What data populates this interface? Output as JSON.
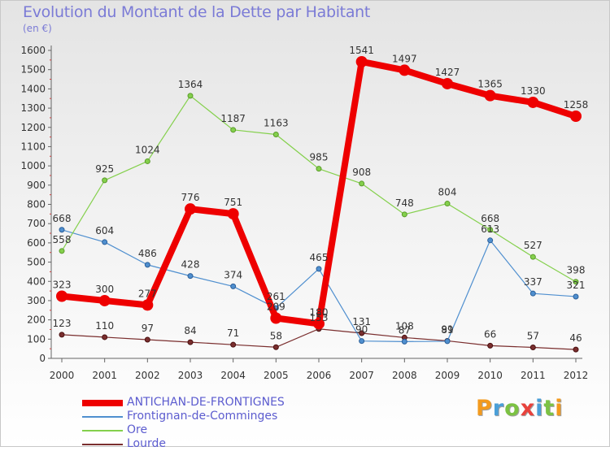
{
  "title": "Evolution du Montant de la Dette par Habitant",
  "subtitle": "(en €)",
  "brand": {
    "logo": "Proxiti",
    "colors": [
      "#f39a1e",
      "#4a9fd8",
      "#7cc243",
      "#e8423c",
      "#4a9fd8",
      "#7cc243",
      "#f39a1e"
    ]
  },
  "chart_data": {
    "type": "line",
    "title": "Evolution du Montant de la Dette par Habitant",
    "subtitle": "(en €)",
    "xlabel": "",
    "ylabel": "",
    "x": [
      "2000",
      "2001",
      "2002",
      "2003",
      "2004",
      "2005",
      "2006",
      "2007",
      "2008",
      "2009",
      "2010",
      "2011",
      "2012"
    ],
    "ylim": [
      0,
      1600
    ],
    "yticks": [
      0,
      100,
      200,
      300,
      400,
      500,
      600,
      700,
      800,
      900,
      1000,
      1100,
      1200,
      1300,
      1400,
      1500,
      1600
    ],
    "grid": false,
    "legend_position": "bottom-left",
    "series": [
      {
        "name": "ANTICHAN-DE-FRONTIGNES",
        "color": "#ee0000",
        "values": [
          323,
          300,
          277,
          776,
          751,
          209,
          180,
          1541,
          1497,
          1427,
          1365,
          1330,
          1258
        ]
      },
      {
        "name": "Frontignan-de-Comminges",
        "color": "#4f8fcf",
        "values": [
          668,
          604,
          486,
          428,
          374,
          261,
          465,
          90,
          87,
          89,
          613,
          337,
          321
        ]
      },
      {
        "name": "Ore",
        "color": "#84d04c",
        "values": [
          558,
          925,
          1024,
          1364,
          1187,
          1163,
          985,
          908,
          748,
          804,
          668,
          527,
          398
        ]
      },
      {
        "name": "Lourde",
        "color": "#7a2e2e",
        "values": [
          123,
          110,
          97,
          84,
          71,
          58,
          153,
          131,
          108,
          91,
          66,
          57,
          46
        ]
      }
    ]
  }
}
